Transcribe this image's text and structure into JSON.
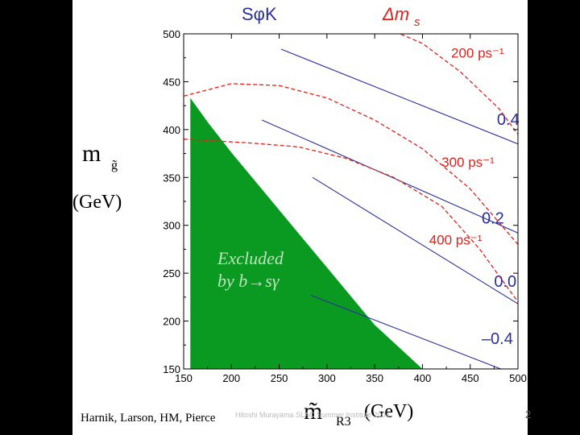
{
  "slide": {
    "authors": "Harnik, Larson, HM, Pierce",
    "page_number": "2",
    "footer_faint": "Hitoshi Murayama SLAC Summer Institute 2004"
  },
  "chart_data": {
    "type": "line",
    "xlabel": "(GeV)",
    "xlabel_symbol": "m̃",
    "xlabel_sub": "R3",
    "ylabel": "(GeV)",
    "ylabel_symbol": "m",
    "ylabel_sub": "g̃",
    "xlim": [
      150,
      500
    ],
    "ylim": [
      150,
      500
    ],
    "xticks": [
      150,
      200,
      250,
      300,
      350,
      400,
      450,
      500
    ],
    "yticks": [
      150,
      200,
      250,
      300,
      350,
      400,
      450,
      500
    ],
    "header_left": "SφK",
    "header_right": "Δm",
    "header_right_sub": "s",
    "colors": {
      "blue": "#2b2f9c",
      "red": "#e0221c",
      "green": "#0a9a22",
      "excluded_text": "#b8e6b8"
    },
    "excluded_region": {
      "label_line1": "Excluded",
      "label_line2": "by b→sγ",
      "boundary": [
        [
          157,
          433
        ],
        [
          175,
          408
        ],
        [
          200,
          376
        ],
        [
          250,
          316
        ],
        [
          300,
          256
        ],
        [
          350,
          196
        ],
        [
          400,
          150
        ],
        [
          157,
          150
        ]
      ]
    },
    "series": [
      {
        "name": "S_phiK",
        "label": "0.4",
        "style": "solid",
        "color": "blue",
        "points": [
          [
            252,
            484
          ],
          [
            500,
            385
          ]
        ],
        "label_at": [
          478,
          405
        ]
      },
      {
        "name": "S_phiK",
        "label": "0.2",
        "style": "solid",
        "color": "blue",
        "points": [
          [
            232,
            410
          ],
          [
            500,
            292
          ]
        ],
        "label_at": [
          462,
          302
        ]
      },
      {
        "name": "S_phiK",
        "label": "0.0",
        "style": "solid",
        "color": "blue",
        "points": [
          [
            285,
            350
          ],
          [
            500,
            218
          ]
        ],
        "label_at": [
          475,
          236
        ]
      },
      {
        "name": "S_phiK",
        "label": "–0.4",
        "style": "solid",
        "color": "blue",
        "points": [
          [
            283,
            227
          ],
          [
            482,
            150
          ]
        ],
        "label_at": [
          462,
          176
        ]
      },
      {
        "name": "Delta_ms",
        "label": "200 ps⁻¹",
        "style": "dashed",
        "color": "red",
        "points": [
          [
            365,
            505
          ],
          [
            400,
            490
          ],
          [
            440,
            460
          ],
          [
            480,
            422
          ],
          [
            500,
            395
          ]
        ],
        "label_at": [
          430,
          475
        ]
      },
      {
        "name": "Delta_ms",
        "label": "300 ps⁻¹",
        "style": "dashed",
        "color": "red",
        "points": [
          [
            150,
            435
          ],
          [
            200,
            448
          ],
          [
            250,
            446
          ],
          [
            300,
            433
          ],
          [
            350,
            410
          ],
          [
            400,
            380
          ],
          [
            450,
            338
          ],
          [
            500,
            280
          ]
        ],
        "label_at": [
          420,
          361
        ]
      },
      {
        "name": "Delta_ms",
        "label": "400 ps⁻¹",
        "style": "dashed",
        "color": "red",
        "points": [
          [
            150,
            390
          ],
          [
            220,
            386
          ],
          [
            270,
            382
          ],
          [
            320,
            370
          ],
          [
            370,
            350
          ],
          [
            420,
            320
          ],
          [
            460,
            275
          ],
          [
            500,
            220
          ]
        ],
        "label_at": [
          407,
          280
        ]
      }
    ]
  }
}
